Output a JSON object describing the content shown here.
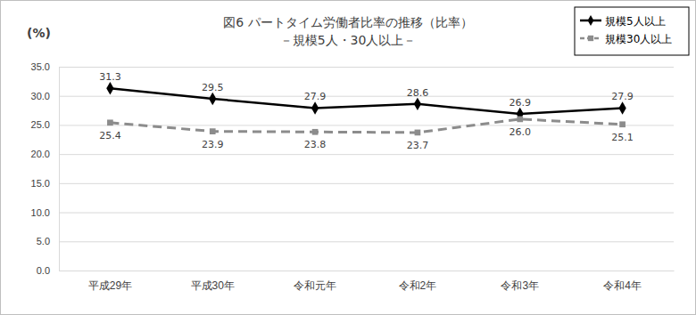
{
  "chart_data": {
    "type": "line",
    "title": "図6 パートタイム労働者比率の推移（比率）",
    "subtitle": "－規模5人・30人以上－",
    "y_label": "(%)",
    "categories": [
      "平成29年",
      "平成30年",
      "令和元年",
      "令和2年",
      "令和3年",
      "令和4年"
    ],
    "series": [
      {
        "name": "規模5人以上",
        "color": "#000000",
        "marker": "diamond",
        "line_style": "solid",
        "values": [
          31.3,
          29.5,
          27.9,
          28.6,
          26.9,
          27.9
        ],
        "value_labels": [
          "31.3",
          "29.5",
          "27.9",
          "28.6",
          "26.9",
          "27.9"
        ]
      },
      {
        "name": "規模30人以上",
        "color": "#8c8c8c",
        "marker": "square",
        "line_style": "dashed",
        "values": [
          25.4,
          23.9,
          23.8,
          23.7,
          26.0,
          25.1
        ],
        "value_labels": [
          "25.4",
          "23.9",
          "23.8",
          "23.7",
          "26.0",
          "25.1"
        ]
      }
    ],
    "ylim": [
      0,
      35
    ],
    "yticks": [
      {
        "value": 0,
        "label": "0.0"
      },
      {
        "value": 5,
        "label": "5.0"
      },
      {
        "value": 10,
        "label": "10.0"
      },
      {
        "value": 15,
        "label": "15.0"
      },
      {
        "value": 20,
        "label": "20.0"
      },
      {
        "value": 25,
        "label": "25.0"
      },
      {
        "value": 30,
        "label": "30.0"
      },
      {
        "value": 35,
        "label": "35.0"
      }
    ],
    "grid": true,
    "legend": "top-right",
    "data_labels": true
  }
}
